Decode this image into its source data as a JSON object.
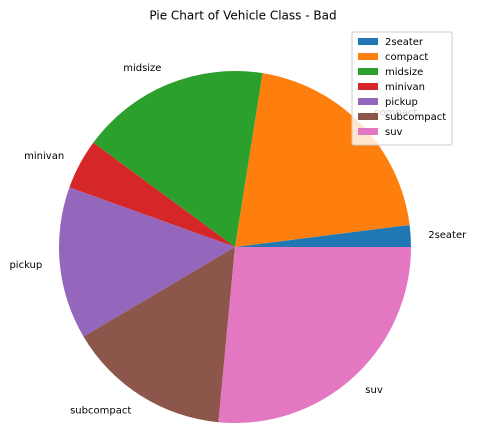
{
  "chart_data": {
    "type": "pie",
    "title": "Pie Chart of Vehicle Class - Bad",
    "categories": [
      "2seater",
      "compact",
      "midsize",
      "minivan",
      "pickup",
      "subcompact",
      "suv"
    ],
    "values": [
      2,
      20.5,
      17.4,
      4.6,
      14,
      15,
      26.5
    ],
    "colors": [
      "#1f77b4",
      "#ff7f0e",
      "#2ca02c",
      "#d62728",
      "#9467bd",
      "#8c564b",
      "#e377c2"
    ],
    "legend": "upper right"
  }
}
